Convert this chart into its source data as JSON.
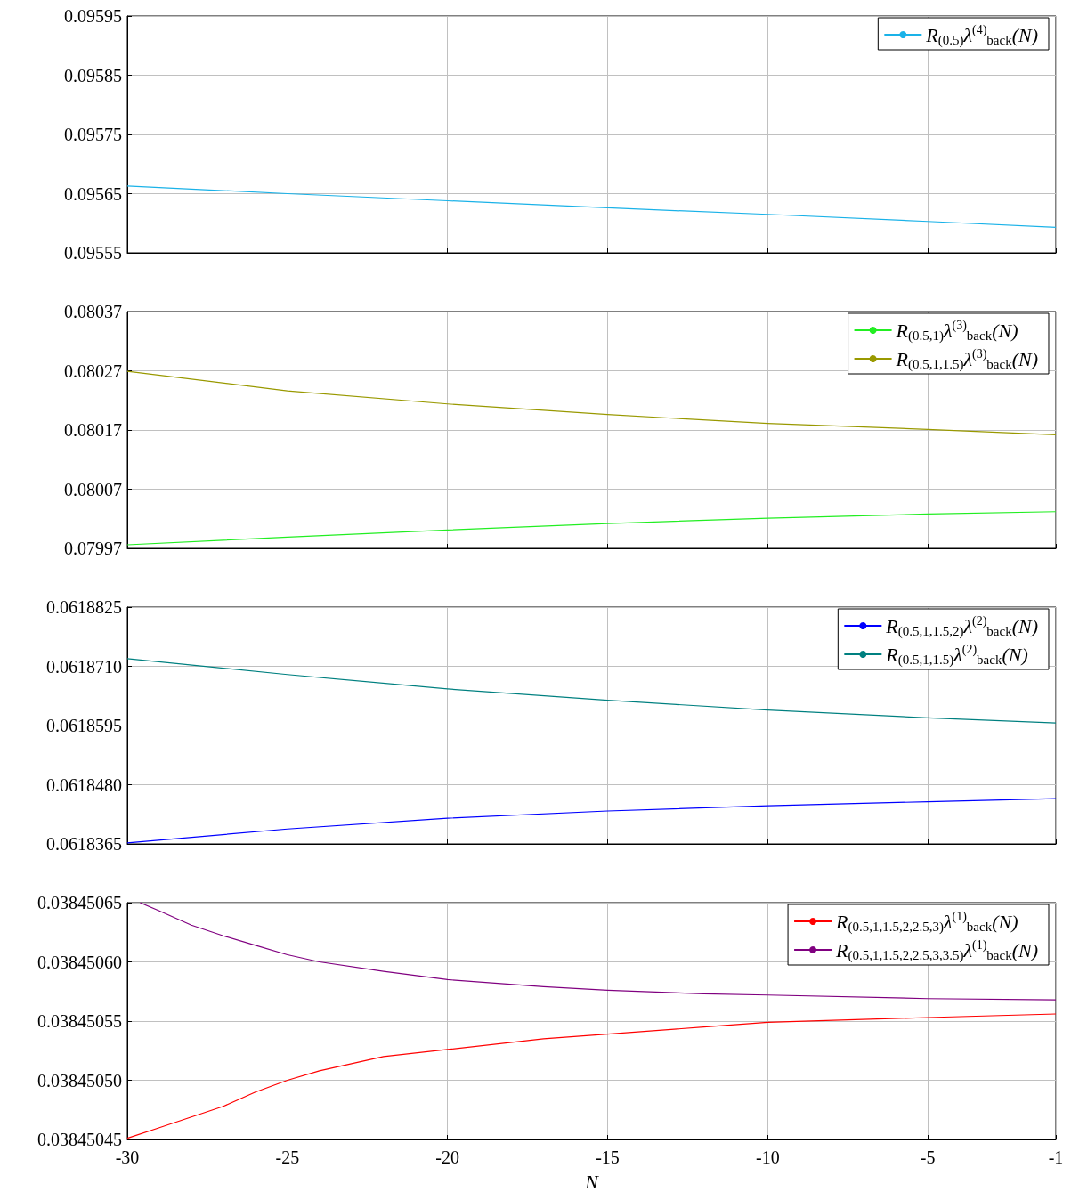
{
  "chart_data": [
    {
      "type": "line",
      "xlim": [
        -30,
        -1
      ],
      "xticks": [
        -30,
        -25,
        -20,
        -15,
        -10,
        -5,
        -1
      ],
      "ylim": [
        0.09555,
        0.09595
      ],
      "yticks": [
        0.09555,
        0.09565,
        0.09575,
        0.09585,
        0.09595
      ],
      "grid": true,
      "legend": "top right",
      "tick_labels": "y",
      "marker": "none",
      "line_style": "solid",
      "series": [
        {
          "name": "R$_{(0.5)}$λ$^{(4)}$$_{back}$(N)",
          "color": "#1ab2e8",
          "x": [
            -30,
            -25,
            -20,
            -15,
            -10,
            -5,
            -1
          ],
          "values": [
            0.095663,
            0.09565,
            0.095638,
            0.095626,
            0.095615,
            0.095603,
            0.095593
          ]
        }
      ]
    },
    {
      "type": "line",
      "xlim": [
        -30,
        -1
      ],
      "xticks": [
        -30,
        -25,
        -20,
        -15,
        -10,
        -5,
        -1
      ],
      "ylim": [
        0.07997,
        0.08037
      ],
      "yticks": [
        0.07997,
        0.08007,
        0.08017,
        0.08027,
        0.08037
      ],
      "grid": true,
      "legend": "top right",
      "tick_labels": "y",
      "marker": "none",
      "line_style": "solid",
      "series": [
        {
          "name": "R$_{(0.5,1)}$λ$^{(3)}$$_{back}$(N)",
          "color": "#22ee22",
          "x": [
            -30,
            -25,
            -20,
            -15,
            -10,
            -5,
            -1
          ],
          "values": [
            0.079976,
            0.079989,
            0.080001,
            0.080012,
            0.080021,
            0.080028,
            0.080032
          ]
        },
        {
          "name": "R$_{(0.5,1,1.5)}$λ$^{(3)}$$_{back}$(N)",
          "color": "#999900",
          "x": [
            -30,
            -25,
            -20,
            -15,
            -10,
            -5,
            -1
          ],
          "values": [
            0.080269,
            0.080236,
            0.080214,
            0.080196,
            0.080181,
            0.080171,
            0.080162
          ]
        }
      ]
    },
    {
      "type": "line",
      "xlim": [
        -30,
        -1
      ],
      "xticks": [
        -30,
        -25,
        -20,
        -15,
        -10,
        -5,
        -1
      ],
      "ylim": [
        0.0618365,
        0.0618825
      ],
      "yticks": [
        0.0618365,
        {
          "value": 0.061848,
          "label": "0.0618480"
        },
        0.0618595,
        {
          "value": 0.061871,
          "label": "0.0618710"
        },
        0.0618825
      ],
      "grid": true,
      "legend": "top right",
      "tick_labels": "y",
      "marker": "none",
      "line_style": "solid",
      "series": [
        {
          "name": "R$_{(0.5,1,1.5,2)}$λ$^{(2)}$$_{back}$(N)",
          "color": "#0000ff",
          "x": [
            -30,
            -25,
            -20,
            -15,
            -10,
            -5,
            -1
          ],
          "values": [
            0.0618367,
            0.0618394,
            0.0618415,
            0.0618429,
            0.0618439,
            0.0618447,
            0.0618453
          ]
        },
        {
          "name": "R$_{(0.5,1,1.5)}$λ$^{(2)}$$_{back}$(N)",
          "color": "#008080",
          "x": [
            -30,
            -25,
            -20,
            -15,
            -10,
            -5,
            -1
          ],
          "values": [
            0.0618725,
            0.0618694,
            0.0618666,
            0.0618644,
            0.0618625,
            0.061861,
            0.06186
          ]
        }
      ]
    },
    {
      "type": "line",
      "xlabel": "N",
      "xlim": [
        -30,
        -1
      ],
      "xticks": [
        -30,
        -25,
        -20,
        -15,
        -10,
        -5,
        -1
      ],
      "ylim": [
        0.03845045,
        0.03845065
      ],
      "yticks": [
        0.03845045,
        {
          "value": 0.0384505,
          "label": "0.03845050"
        },
        0.03845055,
        {
          "value": 0.0384506,
          "label": "0.03845060"
        },
        0.03845065
      ],
      "grid": true,
      "legend": "top right",
      "marker": "none",
      "line_style": "solid",
      "series": [
        {
          "name": "R$_{(0.5,1,1.5,2,2.5,3)}$λ$^{(1)}$$_{back}$(N)",
          "color": "#ff0000",
          "x": [
            -30,
            -29,
            -28,
            -27,
            -26,
            -25,
            -24,
            -22,
            -20,
            -17,
            -15,
            -12,
            -10,
            -5,
            -1
          ],
          "values": [
            0.038450451,
            0.03845046,
            0.038450469,
            0.038450478,
            0.03845049,
            0.0384505,
            0.038450508,
            0.03845052,
            0.038450526,
            0.038450535,
            0.038450539,
            0.038450545,
            0.038450549,
            0.038450553,
            0.038450556
          ]
        },
        {
          "name": "R$_{(0.5,1,1.5,2,2.5,3,3.5)}$λ$^{(1)}$$_{back}$(N)",
          "color": "#800080",
          "x": [
            -29.6,
            -29,
            -28,
            -27,
            -26,
            -25,
            -24,
            -22,
            -20,
            -17,
            -15,
            -12,
            -10,
            -5,
            -1
          ],
          "values": [
            0.03845065,
            0.038450643,
            0.038450631,
            0.038450622,
            0.038450614,
            0.038450606,
            0.0384506,
            0.038450592,
            0.038450585,
            0.038450579,
            0.038450576,
            0.038450573,
            0.038450572,
            0.038450569,
            0.038450568
          ]
        }
      ]
    }
  ]
}
